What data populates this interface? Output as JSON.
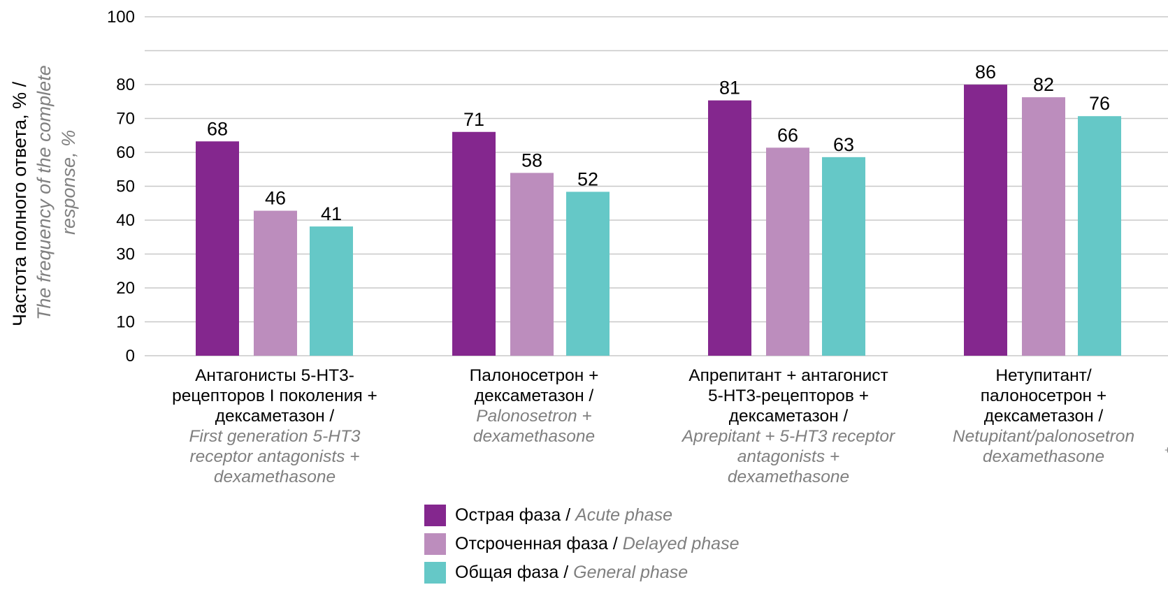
{
  "chart_data": {
    "type": "bar",
    "y_axis": {
      "label_ru": "Частота полного ответа,  % /",
      "label_en_line1": "The frequency of the complete",
      "label_en_line2": "response, %",
      "ticks": [
        "0",
        "10",
        "20",
        "30",
        "40",
        "50",
        "60",
        "70",
        "80",
        "100"
      ]
    },
    "categories": [
      {
        "ru": [
          "Антагонисты 5-HT3-",
          "рецепторов I поколения +",
          "дексаметазон /"
        ],
        "en": [
          "First generation 5-HT3",
          "receptor antagonists +",
          "dexamethasone"
        ]
      },
      {
        "ru": [
          "Палоносетрон +",
          "дексаметазон /"
        ],
        "en": [
          "Palonosetron +",
          "dexamethasone"
        ]
      },
      {
        "ru": [
          "Апрепитант + антагонист",
          "5-HT3-рецепторов +",
          "дексаметазон /"
        ],
        "en": [
          "Aprepitant + 5-HT3 receptor",
          "antagonists +",
          "dexamethasone"
        ]
      },
      {
        "ru": [
          "Нетупитант/",
          "палоносетрон +",
          "дексаметазон /"
        ],
        "en": [
          "Netupitant/palonosetron",
          "dexamethasone"
        ],
        "trailing_mark": "+"
      }
    ],
    "series": [
      {
        "name_ru": "Острая фаза",
        "name_en": "Acute phase",
        "color": "#84278e",
        "values": [
          68,
          71,
          81,
          86
        ]
      },
      {
        "name_ru": "Отсроченная фаза",
        "name_en": "Delayed phase",
        "color": "#bc8dbd",
        "values": [
          46,
          58,
          66,
          82
        ]
      },
      {
        "name_ru": "Общая фаза",
        "name_en": "General phase",
        "color": "#65c8c7",
        "values": [
          41,
          52,
          63,
          76
        ]
      }
    ]
  },
  "colors": {
    "gridline": "#c8c8c8",
    "axis_text": "#000000",
    "english_text": "#7f7f7f"
  }
}
